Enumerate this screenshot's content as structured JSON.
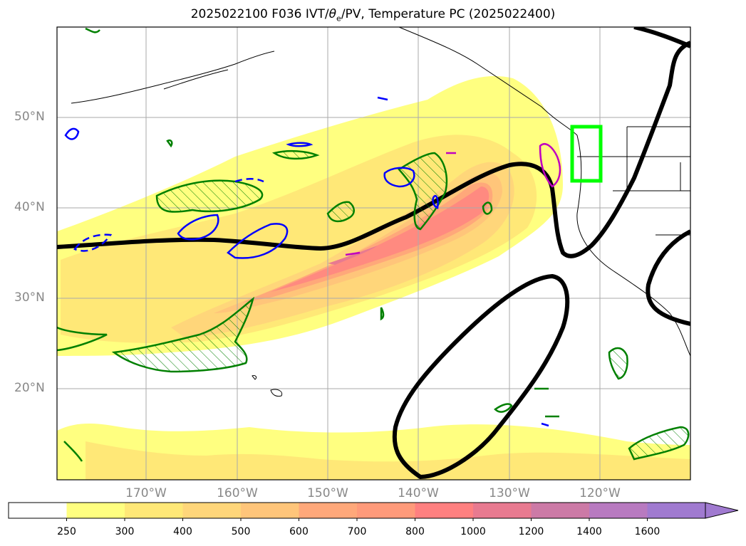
{
  "title_pre": "2025022100 F036 IVT/",
  "title_theta": "θ",
  "title_sub": "e",
  "title_post": "/PV, Temperature PC (2025022400)",
  "lat_labels": [
    "50°N",
    "40°N",
    "30°N",
    "20°N"
  ],
  "lon_labels": [
    "170°W",
    "160°W",
    "150°W",
    "140°W",
    "130°W",
    "120°W"
  ],
  "colorbar": {
    "ticks": [
      "250",
      "300",
      "400",
      "500",
      "600",
      "700",
      "800",
      "1000",
      "1200",
      "1400",
      "1600"
    ],
    "colors": [
      "#ffffff",
      "#ffff80",
      "#ffe877",
      "#ffd67a",
      "#ffc57a",
      "#ffa87a",
      "#ff9a7a",
      "#ff8080",
      "#e87a90",
      "#cc7aa6",
      "#b87ac0",
      "#a07ad0"
    ],
    "extend": "max"
  },
  "colors": {
    "pv_contour": "#008000",
    "theta_contour": "#0000ff",
    "magenta_contour": "#c000c0",
    "temperature_pc": "#000000",
    "box": "#00ff00",
    "coast": "#000000",
    "grid": "#aaaaaa"
  }
}
